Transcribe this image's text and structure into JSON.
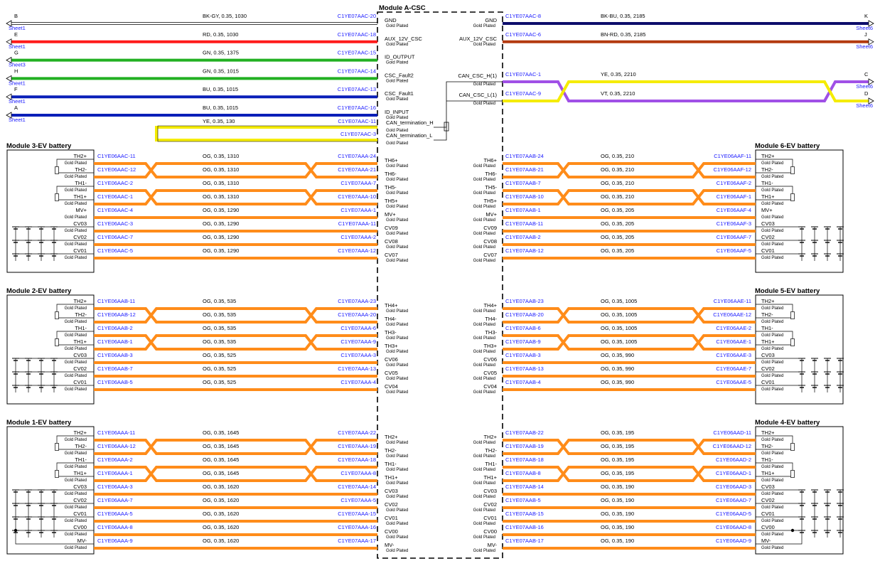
{
  "csc": {
    "title": "Module A-CSC",
    "top_left": [
      {
        "sig": "GND",
        "wire": "BK-GY,  0.35,  1030",
        "conn": "C1YE07AAC-20",
        "color": "#ffffff",
        "edge": "B",
        "sheet": "Sheet1"
      },
      {
        "sig": "AUX_12V_CSC",
        "wire": "RD,  0.35,  1030",
        "conn": "C1YE07AAC-18",
        "color": "#ff1a1a",
        "edge": "E",
        "sheet": "Sheet1"
      },
      {
        "sig": "ID_OUTPUT",
        "wire": "GN,  0.35,  1375",
        "conn": "C1YE07AAC-15",
        "color": "#22b022",
        "edge": "G",
        "sheet": "Sheet3"
      },
      {
        "sig": "CSC_Fault2",
        "wire": "GN,  0.35,  1015",
        "conn": "C1YE07AAC-14",
        "color": "#22b022",
        "edge": "H",
        "sheet": "Sheet1"
      },
      {
        "sig": "CSC_Fault1",
        "wire": "BU,  0.35,  1015",
        "conn": "C1YE07AAC-13",
        "color": "#0a1fb8",
        "edge": "F",
        "sheet": "Sheet1"
      },
      {
        "sig": "ID_INPUT",
        "wire": "BU,  0.35,  1015",
        "conn": "C1YE07AAC-16",
        "color": "#0a1fb8",
        "edge": "A",
        "sheet": "Sheet1"
      }
    ],
    "can_term": [
      {
        "sig": "CAN_termination_H",
        "wire": "YE,  0.35,  130",
        "conn": "C1YE07AAC-11"
      },
      {
        "sig": "CAN_termination_L",
        "wire": "",
        "conn": "C1YE07AAC-3"
      }
    ],
    "top_right": [
      {
        "sig": "GND",
        "wire": "BK-BU,  0.35,  2185",
        "conn": "C1YE07AAC-8",
        "color": "#0d0d6b",
        "edge": "K",
        "sheet": "Sheet6"
      },
      {
        "sig": "AUX_12V_CSC",
        "wire": "BN-RD,  0.35,  2185",
        "conn": "C1YE07AAC-6",
        "color": "#b33a10",
        "edge": "J",
        "sheet": "Sheet6"
      }
    ],
    "can_right": [
      {
        "sig": "CAN_CSC_H(1)",
        "wire": "YE,  0.35,  2210",
        "conn": "C1YE07AAC-1",
        "edge": "C",
        "sheet": "Sheet6"
      },
      {
        "sig": "CAN_CSC_L(1)",
        "wire": "VT,  0.35,  2210",
        "conn": "C1YE07AAC-9",
        "edge": "D",
        "sheet": "Sheet6"
      }
    ],
    "gold": "Gold Plated"
  },
  "modules": [
    {
      "title": "Module 3-EV battery",
      "side": "left",
      "rows": [
        {
          "mod": "TH2+",
          "pin": "C1YE06AAC-11",
          "wire": "OG,  0.35,  1310",
          "conn": "C1YE07AAA-24",
          "csc": "TH6+"
        },
        {
          "mod": "TH2-",
          "pin": "C1YE06AAC-12",
          "wire": "OG,  0.35,  1310",
          "conn": "C1YE07AAA-21",
          "csc": "TH6-"
        },
        {
          "mod": "TH1-",
          "pin": "C1YE06AAC-2",
          "wire": "OG,  0.35,  1310",
          "conn": "C1YE07AAA-7",
          "csc": "TH5-"
        },
        {
          "mod": "TH1+",
          "pin": "C1YE06AAC-1",
          "wire": "OG,  0.35,  1310",
          "conn": "C1YE07AAA-10",
          "csc": "TH5+"
        },
        {
          "mod": "MV+",
          "pin": "C1YE06AAC-4",
          "wire": "OG,  0.35,  1290",
          "conn": "C1YE07AAA-1",
          "csc": "MV+"
        },
        {
          "mod": "CV03",
          "pin": "C1YE06AAC-3",
          "wire": "OG,  0.35,  1290",
          "conn": "C1YE07AAA-11",
          "csc": "CV09"
        },
        {
          "mod": "CV02",
          "pin": "C1YE06AAC-7",
          "wire": "OG,  0.35,  1290",
          "conn": "C1YE07AAA-2",
          "csc": "CV08"
        },
        {
          "mod": "CV01",
          "pin": "C1YE06AAC-5",
          "wire": "OG,  0.35,  1290",
          "conn": "C1YE07AAA-12",
          "csc": "CV07"
        }
      ]
    },
    {
      "title": "Module 6-EV battery",
      "side": "right",
      "rows": [
        {
          "mod": "TH2+",
          "pin": "C1YE06AAF-11",
          "wire": "OG,  0.35,  210",
          "conn": "C1YE07AAB-24",
          "csc": "TH6+"
        },
        {
          "mod": "TH2-",
          "pin": "C1YE06AAF-12",
          "wire": "OG,  0.35,  210",
          "conn": "C1YE07AAB-21",
          "csc": "TH6-"
        },
        {
          "mod": "TH1-",
          "pin": "C1YE06AAF-2",
          "wire": "OG,  0.35,  210",
          "conn": "C1YE07AAB-7",
          "csc": "TH5-"
        },
        {
          "mod": "TH1+",
          "pin": "C1YE06AAF-1",
          "wire": "OG,  0.35,  210",
          "conn": "C1YE07AAB-10",
          "csc": "TH5+"
        },
        {
          "mod": "MV+",
          "pin": "C1YE06AAF-4",
          "wire": "OG,  0.35,  205",
          "conn": "C1YE07AAB-1",
          "csc": "MV+"
        },
        {
          "mod": "CV03",
          "pin": "C1YE06AAF-3",
          "wire": "OG,  0.35,  205",
          "conn": "C1YE07AAB-11",
          "csc": "CV09"
        },
        {
          "mod": "CV02",
          "pin": "C1YE06AAF-7",
          "wire": "OG,  0.35,  205",
          "conn": "C1YE07AAB-2",
          "csc": "CV08"
        },
        {
          "mod": "CV01",
          "pin": "C1YE06AAF-5",
          "wire": "OG,  0.35,  205",
          "conn": "C1YE07AAB-12",
          "csc": "CV07"
        }
      ]
    },
    {
      "title": "Module 2-EV battery",
      "side": "left",
      "rows": [
        {
          "mod": "TH2+",
          "pin": "C1YE06AAB-11",
          "wire": "OG,  0.35,  535",
          "conn": "C1YE07AAA-23",
          "csc": "TH4+"
        },
        {
          "mod": "TH2-",
          "pin": "C1YE06AAB-12",
          "wire": "OG,  0.35,  535",
          "conn": "C1YE07AAA-20",
          "csc": "TH4-"
        },
        {
          "mod": "TH1-",
          "pin": "C1YE06AAB-2",
          "wire": "OG,  0.35,  535",
          "conn": "C1YE07AAA-6",
          "csc": "TH3-"
        },
        {
          "mod": "TH1+",
          "pin": "C1YE06AAB-1",
          "wire": "OG,  0.35,  535",
          "conn": "C1YE07AAA-9",
          "csc": "TH3+"
        },
        {
          "mod": "CV03",
          "pin": "C1YE06AAB-3",
          "wire": "OG,  0.35,  525",
          "conn": "C1YE07AAA-3",
          "csc": "CV06"
        },
        {
          "mod": "CV02",
          "pin": "C1YE06AAB-7",
          "wire": "OG,  0.35,  525",
          "conn": "C1YE07AAA-13",
          "csc": "CV05"
        },
        {
          "mod": "CV01",
          "pin": "C1YE06AAB-5",
          "wire": "OG,  0.35,  525",
          "conn": "C1YE07AAA-4",
          "csc": "CV04"
        }
      ]
    },
    {
      "title": "Module 5-EV battery",
      "side": "right",
      "rows": [
        {
          "mod": "TH2+",
          "pin": "C1YE06AAE-11",
          "wire": "OG,  0.35,  1005",
          "conn": "C1YE07AAB-23",
          "csc": "TH4+"
        },
        {
          "mod": "TH2-",
          "pin": "C1YE06AAE-12",
          "wire": "OG,  0.35,  1005",
          "conn": "C1YE07AAB-20",
          "csc": "TH4-"
        },
        {
          "mod": "TH1-",
          "pin": "C1YE06AAE-2",
          "wire": "OG,  0.35,  1005",
          "conn": "C1YE07AAB-6",
          "csc": "TH3-"
        },
        {
          "mod": "TH1+",
          "pin": "C1YE06AAE-1",
          "wire": "OG,  0.35,  1005",
          "conn": "C1YE07AAB-9",
          "csc": "TH3+"
        },
        {
          "mod": "CV03",
          "pin": "C1YE06AAE-3",
          "wire": "OG,  0.35,  990",
          "conn": "C1YE07AAB-3",
          "csc": "CV06"
        },
        {
          "mod": "CV02",
          "pin": "C1YE06AAE-7",
          "wire": "OG,  0.35,  990",
          "conn": "C1YE07AAB-13",
          "csc": "CV05"
        },
        {
          "mod": "CV01",
          "pin": "C1YE06AAE-5",
          "wire": "OG,  0.35,  990",
          "conn": "C1YE07AAB-4",
          "csc": "CV04"
        }
      ]
    },
    {
      "title": "Module 1-EV battery",
      "side": "left",
      "rows": [
        {
          "mod": "TH2+",
          "pin": "C1YE06AAA-11",
          "wire": "OG,  0.35,  1645",
          "conn": "C1YE07AAA-22",
          "csc": "TH2+"
        },
        {
          "mod": "TH2-",
          "pin": "C1YE06AAA-12",
          "wire": "OG,  0.35,  1645",
          "conn": "C1YE07AAA-19",
          "csc": "TH2-"
        },
        {
          "mod": "TH1-",
          "pin": "C1YE06AAA-2",
          "wire": "OG,  0.35,  1645",
          "conn": "C1YE07AAA-18",
          "csc": "TH1-"
        },
        {
          "mod": "TH1+",
          "pin": "C1YE06AAA-1",
          "wire": "OG,  0.35,  1645",
          "conn": "C1YE07AAA-8",
          "csc": "TH1+"
        },
        {
          "mod": "CV03",
          "pin": "C1YE06AAA-3",
          "wire": "OG,  0.35,  1620",
          "conn": "C1YE07AAA-14",
          "csc": "CV03"
        },
        {
          "mod": "CV02",
          "pin": "C1YE06AAA-7",
          "wire": "OG,  0.35,  1620",
          "conn": "C1YE07AAA-5",
          "csc": "CV02"
        },
        {
          "mod": "CV01",
          "pin": "C1YE06AAA-5",
          "wire": "OG,  0.35,  1620",
          "conn": "C1YE07AAA-15",
          "csc": "CV01"
        },
        {
          "mod": "CV00",
          "pin": "C1YE06AAA-8",
          "wire": "OG,  0.35,  1620",
          "conn": "C1YE07AAA-16",
          "csc": "CV00"
        },
        {
          "mod": "MV-",
          "pin": "C1YE06AAA-9",
          "wire": "OG,  0.35,  1620",
          "conn": "C1YE07AAA-17",
          "csc": "MV-"
        }
      ]
    },
    {
      "title": "Module 4-EV battery",
      "side": "right",
      "rows": [
        {
          "mod": "TH2+",
          "pin": "C1YE06AAD-11",
          "wire": "OG,  0.35,  195",
          "conn": "C1YE07AAB-22",
          "csc": "TH2+"
        },
        {
          "mod": "TH2-",
          "pin": "C1YE06AAD-12",
          "wire": "OG,  0.35,  195",
          "conn": "C1YE07AAB-19",
          "csc": "TH2-"
        },
        {
          "mod": "TH1-",
          "pin": "C1YE06AAD-2",
          "wire": "OG,  0.35,  195",
          "conn": "C1YE07AAB-18",
          "csc": "TH1-"
        },
        {
          "mod": "TH1+",
          "pin": "C1YE06AAD-1",
          "wire": "OG,  0.35,  195",
          "conn": "C1YE07AAB-8",
          "csc": "TH1+"
        },
        {
          "mod": "CV03",
          "pin": "C1YE06AAD-3",
          "wire": "OG,  0.35,  190",
          "conn": "C1YE07AAB-14",
          "csc": "CV03"
        },
        {
          "mod": "CV02",
          "pin": "C1YE06AAD-7",
          "wire": "OG,  0.35,  190",
          "conn": "C1YE07AAB-5",
          "csc": "CV02"
        },
        {
          "mod": "CV01",
          "pin": "C1YE06AAD-5",
          "wire": "OG,  0.35,  190",
          "conn": "C1YE07AAB-15",
          "csc": "CV01"
        },
        {
          "mod": "CV00",
          "pin": "C1YE06AAD-8",
          "wire": "OG,  0.35,  190",
          "conn": "C1YE07AAB-16",
          "csc": "CV00"
        },
        {
          "mod": "MV-",
          "pin": "C1YE06AAD-9",
          "wire": "OG,  0.35,  190",
          "conn": "C1YE07AAB-17",
          "csc": "MV-"
        }
      ]
    }
  ],
  "colors": {
    "orange": "#ff8c1a",
    "yellow": "#f5ec00",
    "violet": "#a050e6",
    "link": "#1a1aff"
  }
}
